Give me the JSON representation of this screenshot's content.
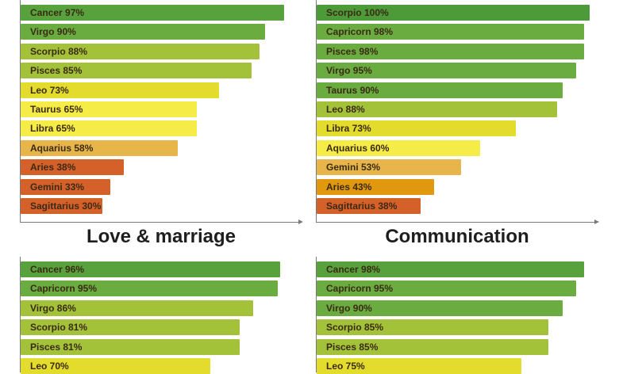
{
  "titles": {
    "bottom_left": "Love & marriage",
    "bottom_right": "Communication"
  },
  "chart_data": [
    {
      "type": "bar",
      "orientation": "horizontal",
      "title": "",
      "categories": [
        "Cancer",
        "Virgo",
        "Scorpio",
        "Pisces",
        "Leo",
        "Taurus",
        "Libra",
        "Aquarius",
        "Aries",
        "Gemini",
        "Sagittarius"
      ],
      "values": [
        97,
        90,
        88,
        85,
        73,
        65,
        65,
        58,
        38,
        33,
        30
      ],
      "labels": [
        "Cancer 97%",
        "Virgo 90%",
        "Scorpio 88%",
        "Pisces 85%",
        "Leo 73%",
        "Taurus 65%",
        "Libra 65%",
        "Aquarius 58%",
        "Aries 38%",
        "Gemini 33%",
        "Sagittarius 30%"
      ],
      "colors": [
        "#57a23d",
        "#6aac40",
        "#a3c23a",
        "#a3c23a",
        "#e3dc2d",
        "#f6ec47",
        "#f6ec47",
        "#e7b54a",
        "#d5612a",
        "#d5612a",
        "#d5612a"
      ],
      "xlim": [
        0,
        100
      ]
    },
    {
      "type": "bar",
      "orientation": "horizontal",
      "title": "",
      "categories": [
        "Scorpio",
        "Capricorn",
        "Pisces",
        "Virgo",
        "Taurus",
        "Leo",
        "Libra",
        "Aquarius",
        "Gemini",
        "Aries",
        "Sagittarius"
      ],
      "values": [
        100,
        98,
        98,
        95,
        90,
        88,
        73,
        60,
        53,
        43,
        38
      ],
      "labels": [
        "Scorpio 100%",
        "Capricorn 98%",
        "Pisces 98%",
        "Virgo 95%",
        "Taurus 90%",
        "Leo 88%",
        "Libra 73%",
        "Aquarius 60%",
        "Gemini 53%",
        "Aries 43%",
        "Sagittarius 38%"
      ],
      "colors": [
        "#4d9a39",
        "#6aac40",
        "#6aac40",
        "#6aac40",
        "#6aac40",
        "#a3c23a",
        "#e3dc2d",
        "#f6ec47",
        "#e7b54a",
        "#e0990f",
        "#d5612a"
      ],
      "xlim": [
        0,
        100
      ]
    },
    {
      "type": "bar",
      "orientation": "horizontal",
      "title": "Love & marriage",
      "categories": [
        "Cancer",
        "Capricorn",
        "Virgo",
        "Scorpio",
        "Pisces",
        "Leo"
      ],
      "values": [
        96,
        95,
        86,
        81,
        81,
        70
      ],
      "labels": [
        "Cancer 96%",
        "Capricorn 95%",
        "Virgo 86%",
        "Scorpio 81%",
        "Pisces 81%",
        "Leo 70%"
      ],
      "colors": [
        "#57a23d",
        "#6aac40",
        "#a3c23a",
        "#a3c23a",
        "#a3c23a",
        "#e3dc2d"
      ],
      "xlim": [
        0,
        100
      ]
    },
    {
      "type": "bar",
      "orientation": "horizontal",
      "title": "Communication",
      "categories": [
        "Cancer",
        "Capricorn",
        "Virgo",
        "Scorpio",
        "Pisces",
        "Leo"
      ],
      "values": [
        98,
        95,
        90,
        85,
        85,
        75
      ],
      "labels": [
        "Cancer 98%",
        "Capricorn 95%",
        "Virgo 90%",
        "Scorpio 85%",
        "Pisces 85%",
        "Leo 75%"
      ],
      "colors": [
        "#57a23d",
        "#6aac40",
        "#6aac40",
        "#a3c23a",
        "#a3c23a",
        "#e3dc2d"
      ],
      "xlim": [
        0,
        100
      ]
    }
  ]
}
